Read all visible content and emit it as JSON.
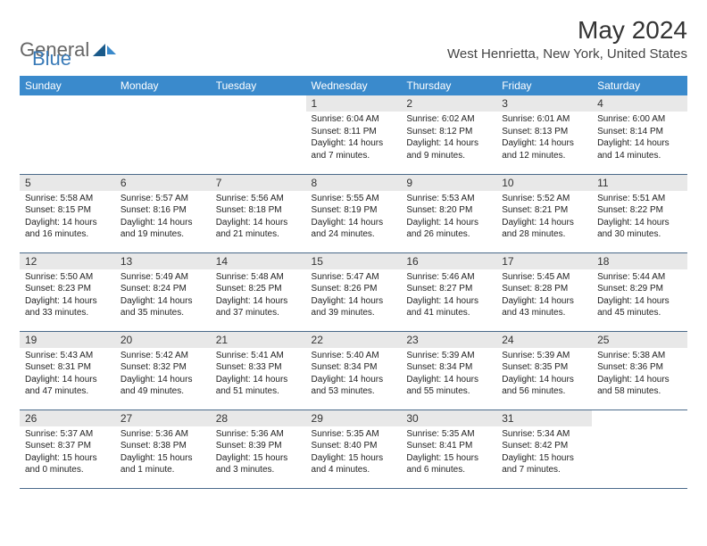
{
  "logo": {
    "part1": "General",
    "part2": "Blue"
  },
  "title": "May 2024",
  "location": "West Henrietta, New York, United States",
  "colors": {
    "header_bg": "#3a8acc",
    "header_fg": "#ffffff",
    "daynum_bg": "#e8e8e8",
    "border": "#4a6a8a",
    "text": "#222222"
  },
  "dayHeaders": [
    "Sunday",
    "Monday",
    "Tuesday",
    "Wednesday",
    "Thursday",
    "Friday",
    "Saturday"
  ],
  "weeks": [
    [
      {
        "n": "",
        "sr": "",
        "ss": "",
        "dl": ""
      },
      {
        "n": "",
        "sr": "",
        "ss": "",
        "dl": ""
      },
      {
        "n": "",
        "sr": "",
        "ss": "",
        "dl": ""
      },
      {
        "n": "1",
        "sr": "Sunrise: 6:04 AM",
        "ss": "Sunset: 8:11 PM",
        "dl": "Daylight: 14 hours and 7 minutes."
      },
      {
        "n": "2",
        "sr": "Sunrise: 6:02 AM",
        "ss": "Sunset: 8:12 PM",
        "dl": "Daylight: 14 hours and 9 minutes."
      },
      {
        "n": "3",
        "sr": "Sunrise: 6:01 AM",
        "ss": "Sunset: 8:13 PM",
        "dl": "Daylight: 14 hours and 12 minutes."
      },
      {
        "n": "4",
        "sr": "Sunrise: 6:00 AM",
        "ss": "Sunset: 8:14 PM",
        "dl": "Daylight: 14 hours and 14 minutes."
      }
    ],
    [
      {
        "n": "5",
        "sr": "Sunrise: 5:58 AM",
        "ss": "Sunset: 8:15 PM",
        "dl": "Daylight: 14 hours and 16 minutes."
      },
      {
        "n": "6",
        "sr": "Sunrise: 5:57 AM",
        "ss": "Sunset: 8:16 PM",
        "dl": "Daylight: 14 hours and 19 minutes."
      },
      {
        "n": "7",
        "sr": "Sunrise: 5:56 AM",
        "ss": "Sunset: 8:18 PM",
        "dl": "Daylight: 14 hours and 21 minutes."
      },
      {
        "n": "8",
        "sr": "Sunrise: 5:55 AM",
        "ss": "Sunset: 8:19 PM",
        "dl": "Daylight: 14 hours and 24 minutes."
      },
      {
        "n": "9",
        "sr": "Sunrise: 5:53 AM",
        "ss": "Sunset: 8:20 PM",
        "dl": "Daylight: 14 hours and 26 minutes."
      },
      {
        "n": "10",
        "sr": "Sunrise: 5:52 AM",
        "ss": "Sunset: 8:21 PM",
        "dl": "Daylight: 14 hours and 28 minutes."
      },
      {
        "n": "11",
        "sr": "Sunrise: 5:51 AM",
        "ss": "Sunset: 8:22 PM",
        "dl": "Daylight: 14 hours and 30 minutes."
      }
    ],
    [
      {
        "n": "12",
        "sr": "Sunrise: 5:50 AM",
        "ss": "Sunset: 8:23 PM",
        "dl": "Daylight: 14 hours and 33 minutes."
      },
      {
        "n": "13",
        "sr": "Sunrise: 5:49 AM",
        "ss": "Sunset: 8:24 PM",
        "dl": "Daylight: 14 hours and 35 minutes."
      },
      {
        "n": "14",
        "sr": "Sunrise: 5:48 AM",
        "ss": "Sunset: 8:25 PM",
        "dl": "Daylight: 14 hours and 37 minutes."
      },
      {
        "n": "15",
        "sr": "Sunrise: 5:47 AM",
        "ss": "Sunset: 8:26 PM",
        "dl": "Daylight: 14 hours and 39 minutes."
      },
      {
        "n": "16",
        "sr": "Sunrise: 5:46 AM",
        "ss": "Sunset: 8:27 PM",
        "dl": "Daylight: 14 hours and 41 minutes."
      },
      {
        "n": "17",
        "sr": "Sunrise: 5:45 AM",
        "ss": "Sunset: 8:28 PM",
        "dl": "Daylight: 14 hours and 43 minutes."
      },
      {
        "n": "18",
        "sr": "Sunrise: 5:44 AM",
        "ss": "Sunset: 8:29 PM",
        "dl": "Daylight: 14 hours and 45 minutes."
      }
    ],
    [
      {
        "n": "19",
        "sr": "Sunrise: 5:43 AM",
        "ss": "Sunset: 8:31 PM",
        "dl": "Daylight: 14 hours and 47 minutes."
      },
      {
        "n": "20",
        "sr": "Sunrise: 5:42 AM",
        "ss": "Sunset: 8:32 PM",
        "dl": "Daylight: 14 hours and 49 minutes."
      },
      {
        "n": "21",
        "sr": "Sunrise: 5:41 AM",
        "ss": "Sunset: 8:33 PM",
        "dl": "Daylight: 14 hours and 51 minutes."
      },
      {
        "n": "22",
        "sr": "Sunrise: 5:40 AM",
        "ss": "Sunset: 8:34 PM",
        "dl": "Daylight: 14 hours and 53 minutes."
      },
      {
        "n": "23",
        "sr": "Sunrise: 5:39 AM",
        "ss": "Sunset: 8:34 PM",
        "dl": "Daylight: 14 hours and 55 minutes."
      },
      {
        "n": "24",
        "sr": "Sunrise: 5:39 AM",
        "ss": "Sunset: 8:35 PM",
        "dl": "Daylight: 14 hours and 56 minutes."
      },
      {
        "n": "25",
        "sr": "Sunrise: 5:38 AM",
        "ss": "Sunset: 8:36 PM",
        "dl": "Daylight: 14 hours and 58 minutes."
      }
    ],
    [
      {
        "n": "26",
        "sr": "Sunrise: 5:37 AM",
        "ss": "Sunset: 8:37 PM",
        "dl": "Daylight: 15 hours and 0 minutes."
      },
      {
        "n": "27",
        "sr": "Sunrise: 5:36 AM",
        "ss": "Sunset: 8:38 PM",
        "dl": "Daylight: 15 hours and 1 minute."
      },
      {
        "n": "28",
        "sr": "Sunrise: 5:36 AM",
        "ss": "Sunset: 8:39 PM",
        "dl": "Daylight: 15 hours and 3 minutes."
      },
      {
        "n": "29",
        "sr": "Sunrise: 5:35 AM",
        "ss": "Sunset: 8:40 PM",
        "dl": "Daylight: 15 hours and 4 minutes."
      },
      {
        "n": "30",
        "sr": "Sunrise: 5:35 AM",
        "ss": "Sunset: 8:41 PM",
        "dl": "Daylight: 15 hours and 6 minutes."
      },
      {
        "n": "31",
        "sr": "Sunrise: 5:34 AM",
        "ss": "Sunset: 8:42 PM",
        "dl": "Daylight: 15 hours and 7 minutes."
      },
      {
        "n": "",
        "sr": "",
        "ss": "",
        "dl": ""
      }
    ]
  ]
}
